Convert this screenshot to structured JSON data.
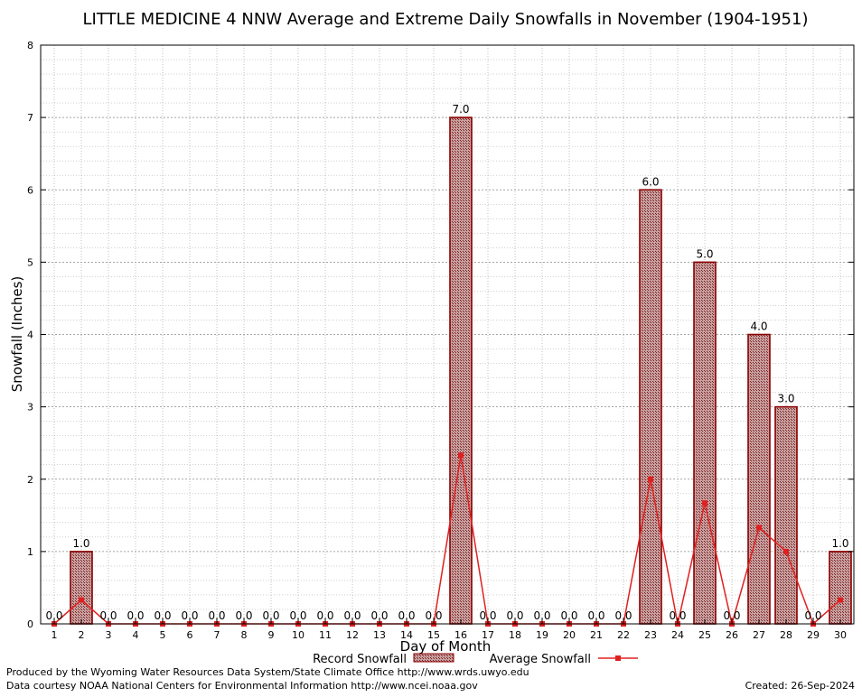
{
  "chart_data": {
    "type": "bar",
    "title": "LITTLE MEDICINE 4 NNW Average and Extreme Daily Snowfalls in November (1904-1951)",
    "xlabel": "Day of Month",
    "ylabel": "Snowfall (Inches)",
    "ylim": [
      0,
      8
    ],
    "yticks": [
      "0",
      "1",
      "2",
      "3",
      "4",
      "5",
      "6",
      "7",
      "8"
    ],
    "grid": true,
    "legend_placement": "bottom",
    "categories": [
      "1",
      "2",
      "3",
      "4",
      "5",
      "6",
      "7",
      "8",
      "9",
      "10",
      "11",
      "12",
      "13",
      "14",
      "15",
      "16",
      "17",
      "18",
      "19",
      "20",
      "21",
      "22",
      "23",
      "24",
      "25",
      "26",
      "27",
      "28",
      "29",
      "30"
    ],
    "series": [
      {
        "name": "Record Snowfall",
        "kind": "bar",
        "values": [
          0,
          1,
          0,
          0,
          0,
          0,
          0,
          0,
          0,
          0,
          0,
          0,
          0,
          0,
          0,
          7,
          0,
          0,
          0,
          0,
          0,
          0,
          6,
          0,
          5,
          0,
          4,
          3,
          0,
          1
        ],
        "labels": [
          "0.0",
          "1.0",
          "0.0",
          "0.0",
          "0.0",
          "0.0",
          "0.0",
          "0.0",
          "0.0",
          "0.0",
          "0.0",
          "0.0",
          "0.0",
          "0.0",
          "0.0",
          "7.0",
          "0.0",
          "0.0",
          "0.0",
          "0.0",
          "0.0",
          "0.0",
          "6.0",
          "0.0",
          "5.0",
          "0.0",
          "4.0",
          "3.0",
          "0.0",
          "1.0"
        ]
      },
      {
        "name": "Average Snowfall",
        "kind": "line",
        "values": [
          0,
          0.33,
          0,
          0,
          0,
          0,
          0,
          0,
          0,
          0,
          0,
          0,
          0,
          0,
          0,
          2.33,
          0,
          0,
          0,
          0,
          0,
          0,
          2.0,
          0,
          1.67,
          0,
          1.33,
          1.0,
          0,
          0.33
        ]
      }
    ],
    "colors": {
      "bar_fill": "#b07070",
      "bar_stroke": "#8b0000",
      "line": "#e02020",
      "grid": "#9a9a9a"
    }
  },
  "footer": {
    "produced_by": "Produced by the Wyoming Water Resources Data System/State Climate Office http://www.wrds.uwyo.edu",
    "courtesy": "Data courtesy NOAA National Centers for Environmental Information http://www.ncei.noaa.gov",
    "created": "Created:  26-Sep-2024"
  }
}
